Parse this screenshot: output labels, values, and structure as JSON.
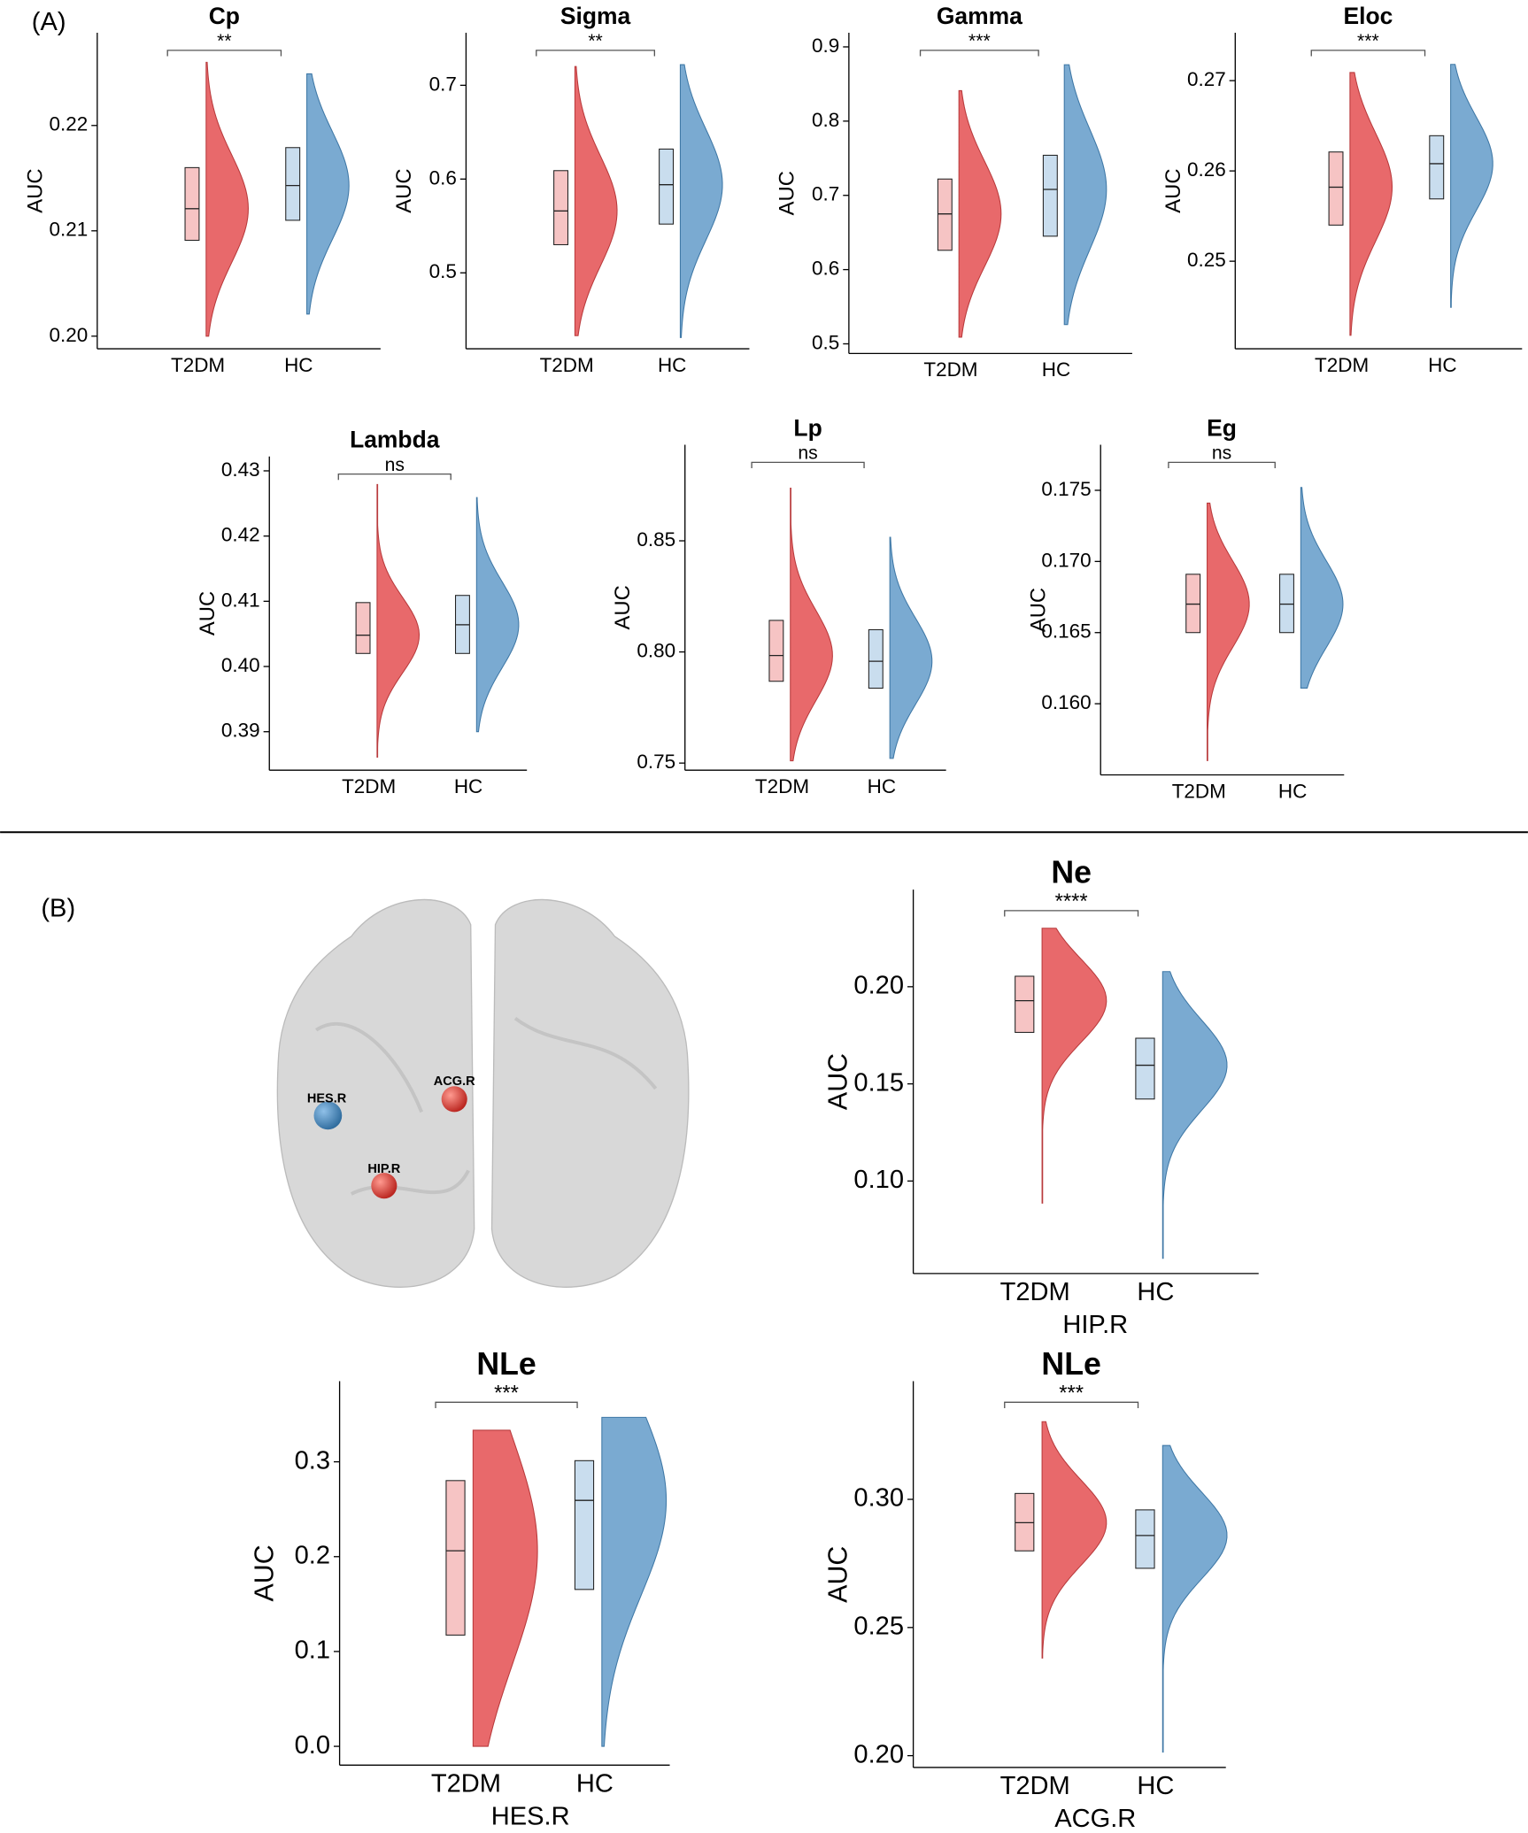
{
  "panel_labels": [
    "(A)",
    "(B)"
  ],
  "brain": {
    "labels": [
      "HES.R",
      "ACG.R",
      "HIP.R"
    ]
  },
  "chart_data": [
    {
      "type": "raincloud",
      "title": "Cp",
      "ylabel": "AUC",
      "categories": [
        "T2DM",
        "HC"
      ],
      "colors": [
        "#e8696b",
        "#7aaad1"
      ],
      "significance": "**",
      "min": [
        0.2,
        0.2021
      ],
      "q1": [
        0.2091,
        0.211
      ],
      "median": [
        0.2121,
        0.2143
      ],
      "q3": [
        0.216,
        0.2179
      ],
      "max": [
        0.226,
        0.2249
      ],
      "ylim": [
        0.1988,
        0.2288
      ],
      "yticks": [
        {
          "value": 0.2,
          "label": "0.20"
        },
        0.21,
        0.22
      ]
    },
    {
      "type": "raincloud",
      "title": "Sigma",
      "ylabel": "AUC",
      "categories": [
        "T2DM",
        "HC"
      ],
      "colors": [
        "#e8696b",
        "#7aaad1"
      ],
      "significance": "**",
      "min": [
        0.433,
        0.431
      ],
      "q1": [
        0.53,
        0.552
      ],
      "median": [
        0.566,
        0.594
      ],
      "q3": [
        0.609,
        0.632
      ],
      "max": [
        0.72,
        0.722
      ],
      "ylim": [
        0.419,
        0.756
      ],
      "yticks": [
        0.5,
        0.6,
        0.7
      ]
    },
    {
      "type": "raincloud",
      "title": "Gamma",
      "ylabel": "AUC",
      "categories": [
        "T2DM",
        "HC"
      ],
      "colors": [
        "#e8696b",
        "#7aaad1"
      ],
      "significance": "***",
      "min": [
        0.509,
        0.526
      ],
      "q1": [
        0.626,
        0.645
      ],
      "median": [
        0.675,
        0.708
      ],
      "q3": [
        0.722,
        0.754
      ],
      "max": [
        0.841,
        0.876
      ],
      "ylim": [
        0.487,
        0.919
      ],
      "yticks": [
        0.5,
        0.6,
        0.7,
        0.8,
        0.9
      ]
    },
    {
      "type": "raincloud",
      "title": "Eloc",
      "ylabel": "AUC",
      "categories": [
        "T2DM",
        "HC"
      ],
      "colors": [
        "#e8696b",
        "#7aaad1"
      ],
      "significance": "***",
      "min": [
        0.2418,
        0.2449
      ],
      "q1": [
        0.254,
        0.2569
      ],
      "median": [
        0.2582,
        0.2608
      ],
      "q3": [
        0.2621,
        0.2639
      ],
      "max": [
        0.2709,
        0.2718
      ],
      "ylim": [
        0.2403,
        0.2753
      ],
      "yticks": [
        0.25,
        0.26,
        0.27
      ]
    },
    {
      "type": "raincloud",
      "title": "Lambda",
      "ylabel": "AUC",
      "categories": [
        "T2DM",
        "HC"
      ],
      "colors": [
        "#e8696b",
        "#7aaad1"
      ],
      "significance": "ns",
      "min": [
        0.3861,
        0.39
      ],
      "q1": [
        0.402,
        0.402
      ],
      "median": [
        0.4048,
        0.4064
      ],
      "q3": [
        0.4098,
        0.4109
      ],
      "max": [
        0.4279,
        0.4259
      ],
      "ylim": [
        0.3841,
        0.4322
      ],
      "yticks": [
        0.39,
        {
          "value": 0.4,
          "label": "0.40"
        },
        0.41,
        0.42,
        0.43
      ]
    },
    {
      "type": "raincloud",
      "title": "Lp",
      "ylabel": "AUC",
      "categories": [
        "T2DM",
        "HC"
      ],
      "colors": [
        "#e8696b",
        "#7aaad1"
      ],
      "significance": "ns",
      "min": [
        0.751,
        0.7521
      ],
      "q1": [
        0.7868,
        0.7837
      ],
      "median": [
        0.7984,
        0.7958
      ],
      "q3": [
        0.8142,
        0.81
      ],
      "max": [
        0.8737,
        0.8516
      ],
      "ylim": [
        0.7468,
        0.8932
      ],
      "yticks": [
        0.75,
        {
          "value": 0.8,
          "label": "0.80"
        },
        0.85
      ]
    },
    {
      "type": "raincloud",
      "title": "Eg",
      "ylabel": "AUC",
      "categories": [
        "T2DM",
        "HC"
      ],
      "colors": [
        "#e8696b",
        "#7aaad1"
      ],
      "significance": "ns",
      "min": [
        0.156,
        0.1611
      ],
      "q1": [
        0.165,
        0.165
      ],
      "median": [
        0.167,
        0.167
      ],
      "q3": [
        0.1691,
        0.1691
      ],
      "max": [
        0.1741,
        0.1752
      ],
      "ylim": [
        0.155,
        0.1782
      ],
      "yticks": [
        {
          "value": 0.16,
          "label": "0.160"
        },
        0.165,
        {
          "value": 0.17,
          "label": "0.170"
        },
        0.175
      ]
    },
    {
      "type": "raincloud",
      "title": "Ne",
      "ylabel": "AUC",
      "xlabel": "HIP.R",
      "categories": [
        "T2DM",
        "HC"
      ],
      "colors": [
        "#e8696b",
        "#7aaad1"
      ],
      "significance": "****",
      "min": [
        0.0886,
        0.0602
      ],
      "q1": [
        0.1765,
        0.1422
      ],
      "median": [
        0.1928,
        0.1596
      ],
      "q3": [
        0.2054,
        0.1735
      ],
      "max": [
        0.2301,
        0.2078
      ],
      "ylim": [
        0.0524,
        0.25
      ],
      "yticks": [
        {
          "value": 0.1,
          "label": "0.10"
        },
        0.15,
        {
          "value": 0.2,
          "label": "0.20"
        }
      ]
    },
    {
      "type": "raincloud",
      "title": "NLe",
      "ylabel": "AUC",
      "xlabel": "HES.R",
      "categories": [
        "T2DM",
        "HC"
      ],
      "colors": [
        "#e8696b",
        "#7aaad1"
      ],
      "significance": "***",
      "min": [
        0,
        0
      ],
      "q1": [
        0.1173,
        0.1654
      ],
      "median": [
        0.2062,
        0.2593
      ],
      "q3": [
        0.2802,
        0.3012
      ],
      "max": [
        0.3333,
        0.3469
      ],
      "ylim": [
        -0.0198,
        0.385
      ],
      "yticks": [
        {
          "value": 0,
          "label": "0.0"
        },
        0.1,
        0.2,
        0.3
      ]
    },
    {
      "type": "raincloud",
      "title": "NLe",
      "ylabel": "AUC",
      "xlabel": "ACG.R",
      "categories": [
        "T2DM",
        "HC"
      ],
      "colors": [
        "#e8696b",
        "#7aaad1"
      ],
      "significance": "***",
      "min": [
        0.2381,
        0.2014
      ],
      "q1": [
        0.2799,
        0.2731
      ],
      "median": [
        0.2909,
        0.2859
      ],
      "q3": [
        0.3023,
        0.2959
      ],
      "max": [
        0.3303,
        0.321
      ],
      "ylim": [
        0.1954,
        0.3461
      ],
      "yticks": [
        {
          "value": 0.2,
          "label": "0.20"
        },
        0.25,
        {
          "value": 0.3,
          "label": "0.30"
        }
      ]
    }
  ]
}
